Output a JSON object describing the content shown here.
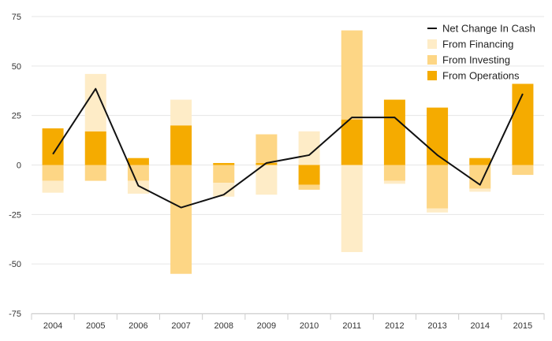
{
  "chart_data": {
    "type": "bar",
    "categories": [
      "2004",
      "2005",
      "2006",
      "2007",
      "2008",
      "2009",
      "2010",
      "2011",
      "2012",
      "2013",
      "2014",
      "2015"
    ],
    "ylim": [
      -75,
      75
    ],
    "yticks": [
      "75",
      "50",
      "25",
      "0",
      "-25",
      "-50",
      "-75"
    ],
    "ytick_values": [
      75,
      50,
      25,
      0,
      -25,
      -50,
      -75
    ],
    "grid": true,
    "legend_position": "top-right",
    "bar_series": [
      {
        "name": "From Operations",
        "color": "#f5ab00",
        "values": [
          18.5,
          17,
          3.5,
          20,
          1,
          1,
          -10,
          23,
          33,
          29,
          3.5,
          41
        ]
      },
      {
        "name": "From Investing",
        "color": "#fdd685",
        "values": [
          -8,
          -8,
          -8,
          -55,
          -9,
          14.5,
          -2.5,
          45,
          -8,
          -22,
          -12,
          -5
        ]
      },
      {
        "name": "From Financing",
        "color": "#feecc7",
        "values": [
          -6,
          29,
          -6.5,
          13,
          -7,
          -15,
          17,
          -44,
          -1.5,
          -2,
          -1.5,
          0
        ]
      }
    ],
    "line_series": {
      "name": "Net Change In Cash",
      "color": "#111111",
      "values": [
        5.5,
        38.5,
        -10.5,
        -21.5,
        -15,
        1,
        5,
        24,
        24,
        5,
        -10,
        36
      ]
    },
    "legend": [
      "Net Change In Cash",
      "From Financing",
      "From Investing",
      "From Operations"
    ]
  }
}
